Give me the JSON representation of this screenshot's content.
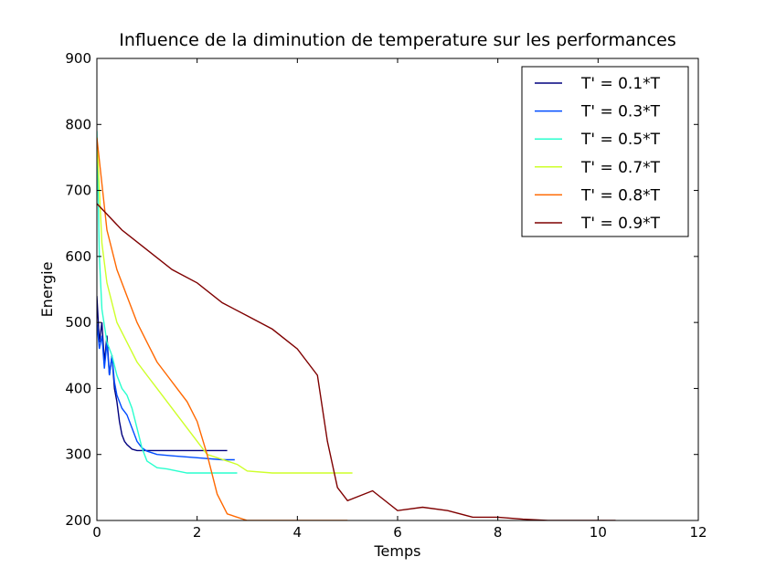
{
  "chart_data": {
    "type": "line",
    "title": "Influence de la diminution de temperature sur les performances",
    "xlabel": "Temps",
    "ylabel": "Energie",
    "xlim": [
      0,
      12
    ],
    "ylim": [
      200,
      900
    ],
    "xticks": [
      0,
      2,
      4,
      6,
      8,
      10,
      12
    ],
    "yticks": [
      200,
      300,
      400,
      500,
      600,
      700,
      800,
      900
    ],
    "grid": false,
    "legend_position": "top-right",
    "series": [
      {
        "name": "T' = 0.1*T",
        "color": "#00007f",
        "x": [
          0,
          0.05,
          0.1,
          0.15,
          0.2,
          0.25,
          0.3,
          0.35,
          0.4,
          0.45,
          0.5,
          0.55,
          0.6,
          0.7,
          0.8,
          1.0,
          1.5,
          2.0,
          2.6
        ],
        "y": [
          540,
          470,
          500,
          440,
          480,
          420,
          450,
          400,
          380,
          350,
          330,
          320,
          315,
          308,
          306,
          306,
          306,
          306,
          306
        ]
      },
      {
        "name": "T' = 0.3*T",
        "color": "#004cff",
        "x": [
          0,
          0.05,
          0.1,
          0.15,
          0.2,
          0.25,
          0.3,
          0.35,
          0.4,
          0.5,
          0.6,
          0.7,
          0.8,
          0.9,
          1.0,
          1.2,
          1.5,
          2.0,
          2.5,
          2.75
        ],
        "y": [
          500,
          460,
          480,
          430,
          470,
          420,
          450,
          410,
          390,
          370,
          360,
          340,
          320,
          310,
          305,
          300,
          298,
          295,
          292,
          292
        ]
      },
      {
        "name": "T' = 0.5*T",
        "color": "#29ffce",
        "x": [
          0,
          0.05,
          0.1,
          0.2,
          0.3,
          0.4,
          0.5,
          0.6,
          0.7,
          0.8,
          0.9,
          1.0,
          1.1,
          1.2,
          1.4,
          1.6,
          1.8,
          2.0,
          2.4,
          2.8
        ],
        "y": [
          790,
          600,
          520,
          470,
          450,
          420,
          400,
          390,
          370,
          340,
          310,
          290,
          285,
          280,
          278,
          275,
          272,
          272,
          272,
          272
        ]
      },
      {
        "name": "T' = 0.7*T",
        "color": "#ceff29",
        "x": [
          0,
          0.1,
          0.2,
          0.4,
          0.6,
          0.8,
          1.0,
          1.2,
          1.4,
          1.6,
          1.8,
          2.0,
          2.2,
          2.4,
          2.6,
          2.8,
          3.0,
          3.5,
          4.0,
          4.5,
          5.1
        ],
        "y": [
          780,
          620,
          560,
          500,
          470,
          440,
          420,
          400,
          380,
          360,
          340,
          320,
          300,
          295,
          290,
          285,
          275,
          272,
          272,
          272,
          272
        ]
      },
      {
        "name": "T' = 0.8*T",
        "color": "#ff6800",
        "x": [
          0,
          0.2,
          0.4,
          0.6,
          0.8,
          1.0,
          1.2,
          1.4,
          1.6,
          1.8,
          2.0,
          2.2,
          2.4,
          2.6,
          2.8,
          3.0,
          3.5,
          4.0,
          4.5,
          5.0
        ],
        "y": [
          780,
          640,
          580,
          540,
          500,
          470,
          440,
          420,
          400,
          380,
          350,
          300,
          240,
          210,
          205,
          200,
          200,
          200,
          200,
          200
        ]
      },
      {
        "name": "T' = 0.9*T",
        "color": "#7f0000",
        "x": [
          0,
          0.5,
          1.0,
          1.5,
          2.0,
          2.5,
          3.0,
          3.5,
          4.0,
          4.4,
          4.6,
          4.8,
          5.0,
          5.5,
          6.0,
          6.5,
          7.0,
          7.5,
          8.0,
          8.5,
          9.0,
          9.5,
          10.0,
          10.35
        ],
        "y": [
          680,
          640,
          610,
          580,
          560,
          530,
          510,
          490,
          460,
          420,
          320,
          250,
          230,
          245,
          215,
          220,
          215,
          205,
          205,
          202,
          200,
          200,
          200,
          200
        ]
      }
    ]
  }
}
